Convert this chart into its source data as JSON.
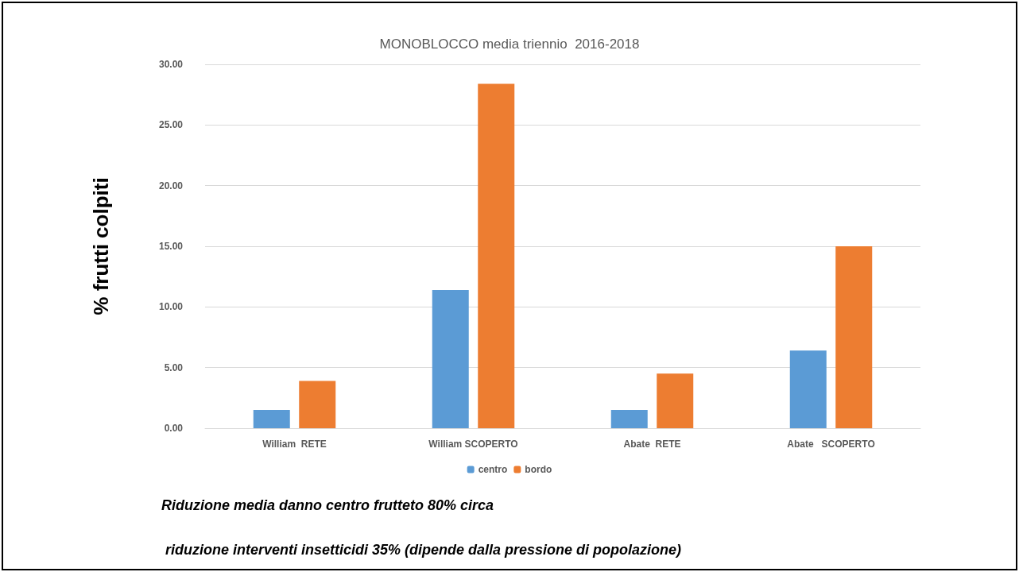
{
  "chart_data": {
    "type": "bar",
    "title": "MONOBLOCCO media triennio  2016-2018",
    "ylabel": "% frutti colpiti",
    "categories": [
      "William  RETE",
      "William SCOPERTO",
      "Abate  RETE",
      "Abate   SCOPERTO"
    ],
    "series": [
      {
        "name": "centro",
        "color": "#5b9bd5",
        "values": [
          1.5,
          11.4,
          1.5,
          6.4
        ]
      },
      {
        "name": "bordo",
        "color": "#ed7d31",
        "values": [
          3.9,
          28.4,
          4.5,
          15.0
        ]
      }
    ],
    "ylim": [
      0,
      30
    ],
    "yticks": [
      {
        "value": 0,
        "label": "0.00"
      },
      {
        "value": 5,
        "label": "5.00"
      },
      {
        "value": 10,
        "label": "10.00"
      },
      {
        "value": 15,
        "label": "15.00"
      },
      {
        "value": 20,
        "label": "20.00"
      },
      {
        "value": 25,
        "label": "25.00"
      },
      {
        "value": 30,
        "label": "30.00"
      }
    ],
    "grid": "y",
    "legend": "bottom",
    "annotations": [
      "Riduzione media danno centro frutteto 80% circa",
      "riduzione interventi insetticidi 35% (dipende dalla pressione di popolazione)"
    ]
  }
}
